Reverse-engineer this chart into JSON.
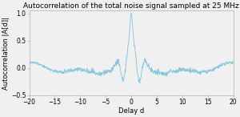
{
  "title": "Autocorrelation of the total noise signal sampled at 25 MHz",
  "xlabel": "Delay d",
  "ylabel": "Autocorrelation |A[d]|",
  "xlim": [
    -20,
    20
  ],
  "ylim": [
    -0.5,
    1.05
  ],
  "yticks": [
    -0.5,
    0,
    0.5,
    1
  ],
  "xticks": [
    -20,
    -15,
    -10,
    -5,
    0,
    5,
    10,
    15,
    20
  ],
  "line_color": "#85c8e0",
  "bg_color": "#f0f0f0",
  "title_fontsize": 6.5,
  "label_fontsize": 6.0,
  "tick_fontsize": 5.5
}
